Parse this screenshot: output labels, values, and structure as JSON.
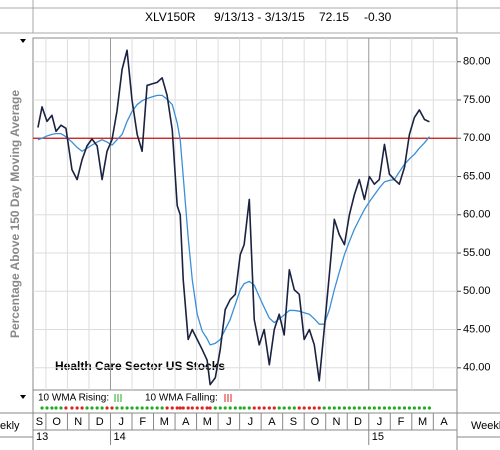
{
  "chart_data": {
    "type": "line",
    "title": "XLV150R",
    "subtitle": "9/13/13 - 3/13/15",
    "last": "72.15",
    "change": "-0.30",
    "ylabel": "Percentage Above 150 Day Moving Average",
    "annotation": "Health Care Sector US Stocks",
    "indicator_rising": "10 WMA Rising:",
    "indicator_falling": "10 WMA Falling:",
    "period_left": "ekly",
    "period_right": "Weekly",
    "rising_color": "#22aa22",
    "falling_color": "#dd2222",
    "x": [
      0.63,
      0.82,
      1.05,
      1.28,
      1.47,
      1.7,
      1.93,
      2.21,
      2.45,
      2.68,
      2.91,
      3.14,
      3.38,
      3.61,
      3.84,
      4.07,
      4.3,
      4.54,
      4.77,
      5.0,
      5.24,
      5.47,
      5.7,
      5.93,
      6.17,
      6.4,
      6.63,
      6.87,
      7.1,
      7.24,
      7.38,
      7.61,
      7.8,
      8.03,
      8.26,
      8.49,
      8.63,
      8.87,
      9.1,
      9.33,
      9.56,
      9.8,
      10.03,
      10.21,
      10.45,
      10.68,
      10.91,
      11.14,
      11.38,
      11.61,
      11.84,
      12.07,
      12.31,
      12.54,
      12.77,
      13.0,
      13.24,
      13.47,
      13.7,
      13.93,
      14.17,
      14.4,
      14.63,
      14.87,
      15.1,
      15.33,
      15.56,
      15.8,
      16.03,
      16.26,
      16.49,
      16.73,
      16.96,
      17.19,
      17.42,
      17.66,
      17.89,
      18.12,
      18.35,
      18.59,
      18.82
    ],
    "series": [
      {
        "color": "#1a2240",
        "values": [
          71.4,
          74.1,
          72.2,
          73.0,
          70.9,
          71.7,
          71.3,
          65.9,
          64.6,
          67.2,
          69.0,
          69.9,
          69.0,
          64.6,
          68.3,
          69.8,
          73.5,
          79.0,
          81.5,
          75.0,
          70.5,
          68.3,
          76.9,
          77.1,
          77.3,
          77.9,
          75.6,
          71.1,
          61.2,
          60.0,
          51.5,
          43.7,
          45.0,
          43.7,
          42.4,
          41.0,
          37.8,
          38.7,
          42.4,
          47.6,
          48.9,
          49.6,
          54.8,
          56.1,
          62.0,
          46.3,
          43.0,
          45.0,
          40.4,
          45.0,
          47.0,
          44.3,
          52.8,
          50.2,
          49.6,
          43.7,
          45.0,
          43.0,
          38.3,
          45.0,
          52.2,
          59.4,
          57.4,
          56.1,
          60.0,
          62.6,
          64.6,
          62.0,
          65.0,
          64.0,
          64.6,
          69.2,
          65.3,
          64.6,
          64.0,
          66.2,
          70.5,
          72.7,
          73.7,
          72.45,
          72.15
        ]
      },
      {
        "color": "#3a8fd8",
        "values": [
          69.8,
          70.0,
          70.3,
          70.5,
          70.6,
          70.6,
          70.2,
          69.5,
          68.8,
          68.3,
          68.7,
          69.1,
          69.5,
          69.8,
          69.5,
          69.1,
          69.8,
          70.5,
          72.2,
          73.5,
          74.4,
          74.9,
          75.2,
          75.4,
          75.6,
          75.6,
          75.1,
          74.4,
          72.0,
          69.8,
          65.0,
          57.0,
          51.5,
          47.0,
          44.8,
          43.8,
          43.0,
          43.2,
          43.7,
          45.0,
          46.3,
          48.3,
          50.2,
          51.0,
          51.3,
          50.8,
          49.3,
          47.9,
          46.5,
          45.9,
          46.4,
          46.9,
          47.5,
          47.5,
          47.4,
          47.2,
          47.0,
          46.4,
          45.7,
          45.7,
          47.6,
          50.2,
          52.5,
          54.8,
          56.5,
          58.1,
          59.4,
          60.7,
          61.7,
          62.6,
          63.5,
          64.3,
          64.5,
          64.6,
          65.6,
          66.6,
          67.3,
          67.9,
          68.7,
          69.4,
          70.2
        ]
      }
    ],
    "reference_line": {
      "value": 70,
      "color": "#cc1111"
    },
    "xlim": [
      0.4,
      20.1
    ],
    "xticks": [
      {
        "value": 0,
        "label": "S"
      },
      {
        "value": 1,
        "label": "O"
      },
      {
        "value": 2,
        "label": "N"
      },
      {
        "value": 3,
        "label": "D"
      },
      {
        "value": 4,
        "label": "J"
      },
      {
        "value": 5,
        "label": "F"
      },
      {
        "value": 6,
        "label": "M"
      },
      {
        "value": 7,
        "label": "A"
      },
      {
        "value": 8,
        "label": "M"
      },
      {
        "value": 9,
        "label": "J"
      },
      {
        "value": 10,
        "label": "J"
      },
      {
        "value": 11,
        "label": "A"
      },
      {
        "value": 12,
        "label": "S"
      },
      {
        "value": 13,
        "label": "O"
      },
      {
        "value": 14,
        "label": "N"
      },
      {
        "value": 15,
        "label": "D"
      },
      {
        "value": 16,
        "label": "J"
      },
      {
        "value": 17,
        "label": "F"
      },
      {
        "value": 18,
        "label": "M"
      },
      {
        "value": 19,
        "label": "A"
      }
    ],
    "year_ticks": [
      {
        "value": 0,
        "label": "13"
      },
      {
        "value": 4,
        "label": "14"
      },
      {
        "value": 16,
        "label": "15"
      }
    ],
    "ylim": [
      37.1,
      83.1
    ],
    "yticks": [
      {
        "value": 40,
        "label": "40.00"
      },
      {
        "value": 45,
        "label": "45.00"
      },
      {
        "value": 50,
        "label": "50.00"
      },
      {
        "value": 55,
        "label": "55.00"
      },
      {
        "value": 60,
        "label": "60.00"
      },
      {
        "value": 65,
        "label": "65.00"
      },
      {
        "value": 70,
        "label": "70.00"
      },
      {
        "value": 75,
        "label": "75.00"
      },
      {
        "value": 80,
        "label": "80.00"
      }
    ],
    "grid": true
  }
}
